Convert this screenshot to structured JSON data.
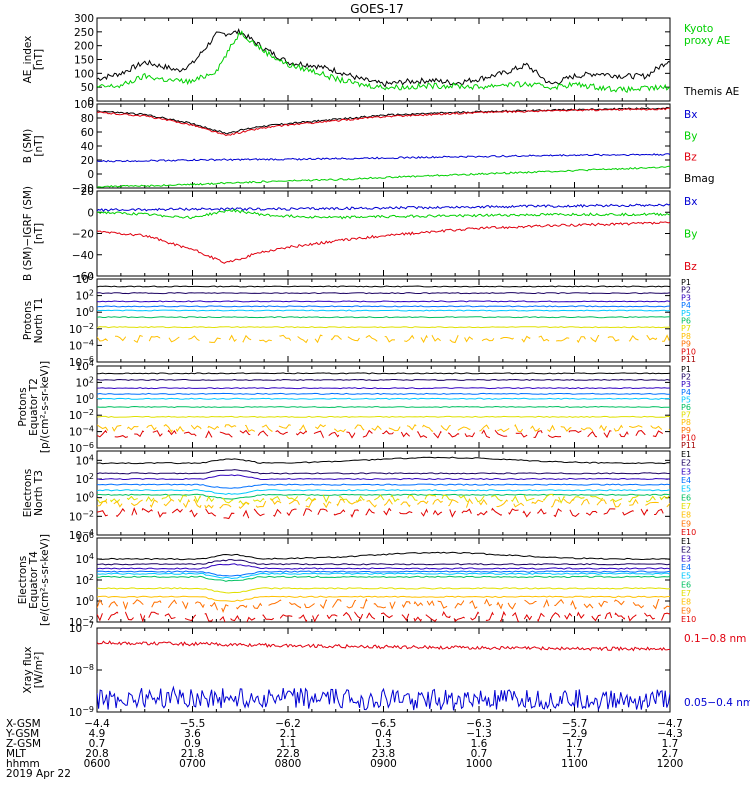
{
  "title": "GOES-17",
  "colors": {
    "black": "#000000",
    "red": "#e0000f",
    "green": "#00d000",
    "blue": "#0000d2"
  },
  "chart_data": [
    {
      "type": "line",
      "id": "ae",
      "ylabel": [
        "AE_index",
        "[nT]"
      ],
      "yticks": [
        "300",
        "250",
        "200",
        "150",
        "100",
        "50",
        "0"
      ],
      "ylim": [
        0,
        300
      ],
      "legend": [
        {
          "lines": [
            "Kyoto",
            "proxy AE"
          ],
          "color": "#00d000"
        },
        {
          "lines": [
            "Themis AE"
          ],
          "color": "#000000"
        }
      ],
      "series": [
        {
          "name": "Themis AE",
          "color": "#000000",
          "x": [
            6.0,
            6.25,
            6.5,
            6.75,
            6.85,
            7.0,
            7.25,
            7.5,
            7.75,
            8.0,
            8.25,
            8.5,
            8.75,
            9.0,
            9.25,
            9.5,
            9.75,
            10.0,
            10.25,
            10.5,
            10.75,
            11.0,
            11.25,
            11.5,
            11.75,
            12.0
          ],
          "y": [
            80,
            100,
            140,
            120,
            110,
            135,
            240,
            250,
            190,
            140,
            130,
            110,
            80,
            60,
            70,
            75,
            65,
            80,
            100,
            130,
            60,
            90,
            100,
            90,
            90,
            150
          ]
        },
        {
          "name": "Kyoto proxy AE",
          "color": "#00d000",
          "x": [
            6.0,
            6.25,
            6.5,
            6.75,
            7.0,
            7.25,
            7.5,
            7.75,
            8.0,
            8.25,
            8.5,
            8.75,
            9.0,
            9.25,
            9.5,
            9.75,
            10.0,
            10.25,
            10.5,
            10.75,
            11.0,
            11.25,
            11.5,
            11.75,
            12.0
          ],
          "y": [
            50,
            55,
            90,
            75,
            70,
            110,
            250,
            180,
            130,
            110,
            80,
            60,
            50,
            50,
            55,
            55,
            50,
            60,
            60,
            50,
            60,
            50,
            40,
            45,
            50
          ]
        }
      ]
    },
    {
      "type": "line",
      "id": "bsm",
      "ylabel": [
        "B (SM)",
        "[nT]"
      ],
      "yticks": [
        "100",
        "80",
        "60",
        "40",
        "20",
        "0",
        "−20"
      ],
      "ylim": [
        -20,
        100
      ],
      "legend": [
        {
          "lines": [
            "Bx"
          ],
          "color": "#0000d2"
        },
        {
          "lines": [
            "By"
          ],
          "color": "#00d000"
        },
        {
          "lines": [
            "Bz"
          ],
          "color": "#e0000f"
        },
        {
          "lines": [
            "Bmag"
          ],
          "color": "#000000"
        }
      ],
      "series": [
        {
          "name": "Bmag",
          "color": "#000000",
          "x": [
            6,
            6.5,
            7.0,
            7.35,
            7.7,
            8.0,
            8.5,
            9.0,
            10.0,
            11.0,
            12.0
          ],
          "y": [
            90,
            85,
            72,
            58,
            68,
            72,
            78,
            84,
            89,
            92,
            94
          ]
        },
        {
          "name": "Bz",
          "color": "#e0000f",
          "x": [
            6,
            6.5,
            7.0,
            7.35,
            7.7,
            8.0,
            8.5,
            9.0,
            10.0,
            11.0,
            12.0
          ],
          "y": [
            88,
            83,
            70,
            55,
            65,
            70,
            76,
            82,
            88,
            91,
            93
          ]
        },
        {
          "name": "Bx",
          "color": "#0000d2",
          "x": [
            6,
            7,
            8,
            9,
            10,
            11,
            12
          ],
          "y": [
            18,
            20,
            21,
            23,
            25,
            27,
            28
          ]
        },
        {
          "name": "By",
          "color": "#00d000",
          "x": [
            6,
            6.5,
            7,
            7.5,
            8,
            8.5,
            9,
            10,
            11,
            12
          ],
          "y": [
            -18,
            -17,
            -15,
            -12,
            -10,
            -8,
            -5,
            0,
            5,
            10
          ]
        }
      ]
    },
    {
      "type": "line",
      "id": "bdiff",
      "ylabel": [
        "B (SM)−IGRF (SM)",
        "[nT]"
      ],
      "yticks": [
        "20",
        "0",
        "−20",
        "−40",
        "−60"
      ],
      "ylim": [
        -60,
        20
      ],
      "legend": [
        {
          "lines": [
            "Bx"
          ],
          "color": "#0000d2"
        },
        {
          "lines": [
            "By"
          ],
          "color": "#00d000"
        },
        {
          "lines": [
            "Bz"
          ],
          "color": "#e0000f"
        }
      ],
      "series": [
        {
          "name": "Bx",
          "color": "#0000d2",
          "x": [
            6,
            7,
            8,
            9,
            10,
            11,
            12
          ],
          "y": [
            2,
            3,
            3,
            4,
            5,
            6,
            7
          ]
        },
        {
          "name": "By",
          "color": "#00d000",
          "x": [
            6,
            6.5,
            7,
            7.4,
            7.8,
            8.5,
            9,
            10,
            11,
            12
          ],
          "y": [
            0,
            -2,
            -5,
            2,
            -3,
            -5,
            -4,
            -3,
            -2,
            -2
          ]
        },
        {
          "name": "Bz",
          "color": "#e0000f",
          "x": [
            6,
            6.5,
            7,
            7.35,
            7.7,
            8,
            8.5,
            9,
            10,
            11,
            12
          ],
          "y": [
            -18,
            -22,
            -35,
            -48,
            -38,
            -33,
            -27,
            -22,
            -15,
            -12,
            -10
          ]
        }
      ]
    },
    {
      "type": "line",
      "id": "pt1",
      "ylog": true,
      "ylabel": [
        "Protons",
        "North T1"
      ],
      "yticks": [
        {
          "b": "10",
          "e": "4"
        },
        {
          "b": "10",
          "e": "2"
        },
        {
          "b": "10",
          "e": "0"
        },
        {
          "b": "10",
          "e": "−2"
        },
        {
          "b": "10",
          "e": "−4"
        },
        {
          "b": "10",
          "e": "−6"
        }
      ],
      "ylim": [
        -6,
        4
      ],
      "channels": [
        {
          "name": "P1",
          "color": "#000000",
          "level": 3.1
        },
        {
          "name": "P2",
          "color": "#1a0060",
          "level": 2.3
        },
        {
          "name": "P3",
          "color": "#3000c0",
          "level": 1.3
        },
        {
          "name": "P4",
          "color": "#0070ff",
          "level": 0.7
        },
        {
          "name": "P5",
          "color": "#00c8ff",
          "level": 0.2
        },
        {
          "name": "P6",
          "color": "#00c060",
          "level": -0.6
        },
        {
          "name": "P7",
          "color": "#e0e000",
          "level": -1.8
        },
        {
          "name": "P8",
          "color": "#ffc000",
          "level": -3.2
        },
        {
          "name": "P9",
          "color": "#ff7000"
        },
        {
          "name": "P10",
          "color": "#e00000"
        },
        {
          "name": "P11",
          "color": "#a00000"
        }
      ]
    },
    {
      "type": "line",
      "id": "pt2",
      "ylog": true,
      "ylabel": [
        "Protons",
        "Equator T2",
        "[p/(cm²-s-sr-keV)]"
      ],
      "yticks": [
        {
          "b": "10",
          "e": "4"
        },
        {
          "b": "10",
          "e": "2"
        },
        {
          "b": "10",
          "e": "0"
        },
        {
          "b": "10",
          "e": "−2"
        },
        {
          "b": "10",
          "e": "−4"
        },
        {
          "b": "10",
          "e": "−6"
        }
      ],
      "ylim": [
        -6,
        4
      ],
      "channels": [
        {
          "name": "P1",
          "color": "#000000",
          "level": 3.1
        },
        {
          "name": "P2",
          "color": "#1a0060",
          "level": 2.3
        },
        {
          "name": "P3",
          "color": "#3000c0",
          "level": 1.3
        },
        {
          "name": "P4",
          "color": "#0070ff",
          "level": 0.6
        },
        {
          "name": "P5",
          "color": "#00c8ff",
          "level": 0.0
        },
        {
          "name": "P6",
          "color": "#00c060",
          "level": -1.0
        },
        {
          "name": "P7",
          "color": "#e0e000",
          "level": -2.2
        },
        {
          "name": "P8",
          "color": "#ffc000",
          "level": -3.6
        },
        {
          "name": "P9",
          "color": "#ff7000"
        },
        {
          "name": "P10",
          "color": "#e00000",
          "level": -4.3
        },
        {
          "name": "P11",
          "color": "#a00000"
        }
      ]
    },
    {
      "type": "line",
      "id": "et3",
      "ylog": true,
      "ylabel": [
        "Electrons",
        "North T3"
      ],
      "yticks": [
        {
          "b": "10",
          "e": "4"
        },
        {
          "b": "10",
          "e": "2"
        },
        {
          "b": "10",
          "e": "0"
        },
        {
          "b": "10",
          "e": "−2"
        },
        {
          "b": "10",
          "e": "−4"
        }
      ],
      "ylim": [
        -4,
        5
      ],
      "channels": [
        {
          "name": "E1",
          "color": "#000000",
          "level": 3.7
        },
        {
          "name": "E2",
          "color": "#1a0060",
          "level": 2.6
        },
        {
          "name": "E3",
          "color": "#3000c0",
          "level": 2.0
        },
        {
          "name": "E4",
          "color": "#0070ff",
          "level": 1.4
        },
        {
          "name": "E5",
          "color": "#00c8ff",
          "level": 0.8
        },
        {
          "name": "E6",
          "color": "#00c060",
          "level": 0.3
        },
        {
          "name": "E7",
          "color": "#e0e000",
          "level": -0.1
        },
        {
          "name": "E8",
          "color": "#ffc000",
          "level": -0.6
        },
        {
          "name": "E9",
          "color": "#ff7000"
        },
        {
          "name": "E10",
          "color": "#e00000",
          "level": -1.6
        }
      ]
    },
    {
      "type": "line",
      "id": "et4",
      "ylog": true,
      "ylabel": [
        "Electrons",
        "Equator T4",
        "[e/(cm²-s-sr-keV)]"
      ],
      "yticks": [
        {
          "b": "10",
          "e": "6"
        },
        {
          "b": "10",
          "e": "4"
        },
        {
          "b": "10",
          "e": "2"
        },
        {
          "b": "10",
          "e": "0"
        },
        {
          "b": "10",
          "e": "−2"
        }
      ],
      "ylim": [
        -2,
        6
      ],
      "channels": [
        {
          "name": "E1",
          "color": "#000000",
          "level": 4.0
        },
        {
          "name": "E2",
          "color": "#1a0060",
          "level": 3.5
        },
        {
          "name": "E3",
          "color": "#3000c0",
          "level": 3.1
        },
        {
          "name": "E4",
          "color": "#0070ff",
          "level": 2.8
        },
        {
          "name": "E5",
          "color": "#00c8ff",
          "level": 2.6
        },
        {
          "name": "E6",
          "color": "#00c060",
          "level": 2.3
        },
        {
          "name": "E7",
          "color": "#e0e000",
          "level": 1.2
        },
        {
          "name": "E8",
          "color": "#ffc000",
          "level": 0.4
        },
        {
          "name": "E9",
          "color": "#ff7000",
          "level": -0.3
        },
        {
          "name": "E10",
          "color": "#e00000",
          "level": -1.5
        }
      ]
    },
    {
      "type": "line",
      "id": "xray",
      "ylog": true,
      "ylabel": [
        "Xray flux",
        "[W/m²]"
      ],
      "yticks": [
        {
          "b": "10",
          "e": "−7"
        },
        {
          "b": "10",
          "e": "−8"
        },
        {
          "b": "10",
          "e": "−9"
        }
      ],
      "ylim": [
        -9,
        -7
      ],
      "legend": [
        {
          "lines": [
            "0.1−0.8 nm"
          ],
          "color": "#e0000f"
        },
        {
          "lines": [
            "0.05−0.4 nm"
          ],
          "color": "#0000d2"
        }
      ],
      "series": [
        {
          "name": "0.1−0.8 nm",
          "color": "#e0000f",
          "x": [
            6,
            7,
            8,
            9,
            10,
            11,
            12
          ],
          "log10": [
            -7.35,
            -7.38,
            -7.42,
            -7.45,
            -7.47,
            -7.49,
            -7.5
          ]
        },
        {
          "name": "0.05−0.4 nm",
          "color": "#0000d2",
          "x": [
            6,
            7,
            8,
            9,
            10,
            11,
            12
          ],
          "log10": [
            -8.7,
            -8.65,
            -8.68,
            -8.7,
            -8.72,
            -8.7,
            -8.72
          ]
        }
      ]
    }
  ],
  "ephemeris": {
    "rows": [
      {
        "label": "X-GSM",
        "values": [
          "−4.4",
          "−5.5",
          "−6.2",
          "−6.5",
          "−6.3",
          "−5.7",
          "−4.7"
        ]
      },
      {
        "label": "Y-GSM",
        "values": [
          "4.9",
          "3.6",
          "2.1",
          "0.4",
          "−1.3",
          "−2.9",
          "−4.3"
        ]
      },
      {
        "label": "Z-GSM",
        "values": [
          "0.7",
          "0.9",
          "1.1",
          "1.3",
          "1.6",
          "1.7",
          "1.7"
        ]
      },
      {
        "label": "MLT",
        "values": [
          "20.8",
          "21.8",
          "22.8",
          "23.8",
          "0.7",
          "1.7",
          "2.7"
        ]
      },
      {
        "label": "hhmm",
        "values": [
          "0600",
          "0700",
          "0800",
          "0900",
          "1000",
          "1100",
          "1200"
        ]
      }
    ],
    "date": "2019 Apr 22"
  }
}
